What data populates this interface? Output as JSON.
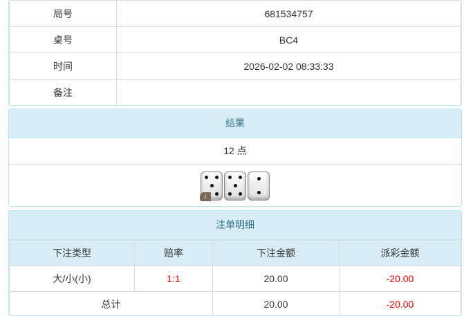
{
  "info": {
    "rows": [
      {
        "label": "局号",
        "value": "681534757"
      },
      {
        "label": "桌号",
        "value": "BC4"
      },
      {
        "label": "时间",
        "value": "2026-02-02 08:33:33"
      },
      {
        "label": "备注",
        "value": ""
      }
    ]
  },
  "result": {
    "title": "结果",
    "points": "12 点",
    "dice": [
      5,
      5,
      2
    ],
    "info_badge": "i"
  },
  "bets": {
    "title": "注单明细",
    "headers": [
      "下注类型",
      "赔率",
      "下注金额",
      "派彩金额"
    ],
    "rows": [
      {
        "type": "大/小(小)",
        "odds": "1:1",
        "amount": "20.00",
        "payout": "-20.00"
      }
    ],
    "total": {
      "label": "总计",
      "amount": "20.00",
      "payout": "-20.00"
    }
  },
  "colors": {
    "header_bg": "#d9edf7",
    "header_text": "#31708f",
    "negative": "#e00000"
  }
}
